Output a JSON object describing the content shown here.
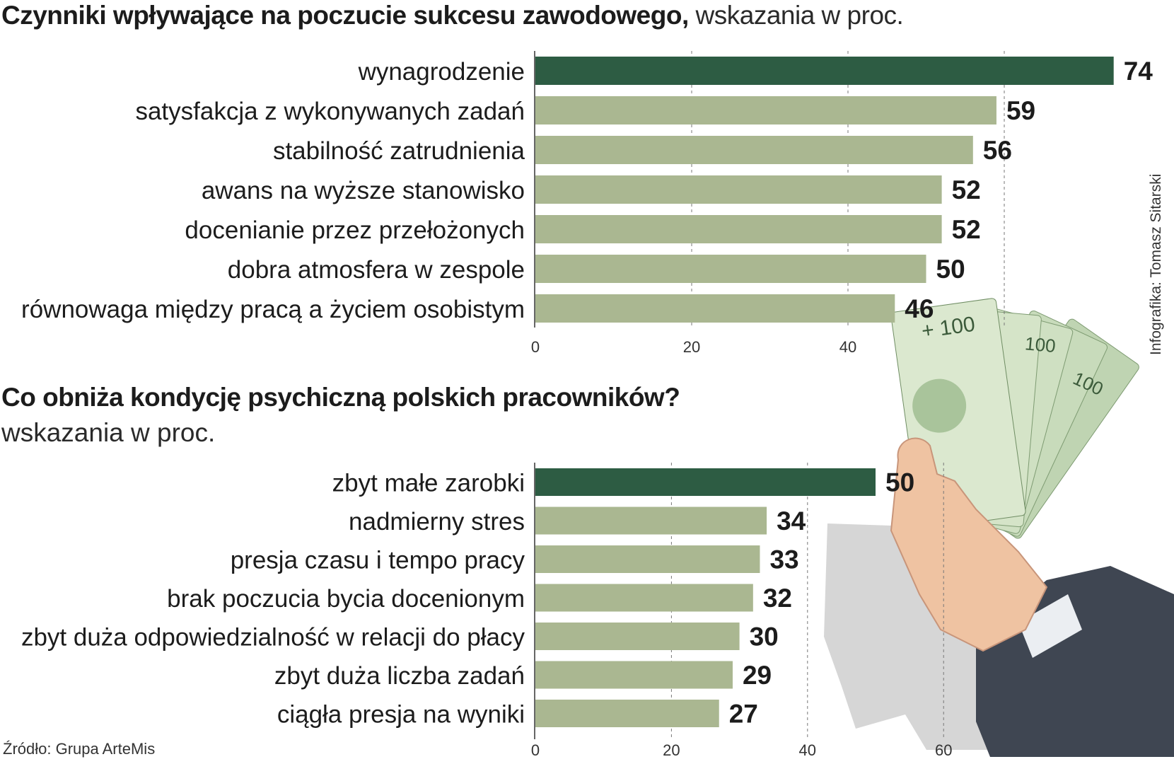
{
  "chart1": {
    "title_bold": "Czynniki wpływające na poczucie sukcesu zawodowego,",
    "title_light": "wskazania w proc."
  },
  "chart2": {
    "title_bold": "Co obniża kondycję psychiczną polskich pracowników?",
    "title_light": "wskazania w proc."
  },
  "credit": "Infografika: Tomasz Sitarski",
  "source": "Źródło: Grupa ArteMis",
  "colors": {
    "highlight": "#2d5c43",
    "bar": "#aab791",
    "text": "#1c1c1c",
    "grid": "#777777"
  },
  "photo_icon": "hand-holding-100-zloty-banknotes",
  "chart_data": [
    {
      "type": "bar",
      "orientation": "horizontal",
      "title": "Czynniki wpływające na poczucie sukcesu zawodowego, wskazania w proc.",
      "categories": [
        "wynagrodzenie",
        "satysfakcja z wykonywanych zadań",
        "stabilność zatrudnienia",
        "awans na wyższe stanowisko",
        "docenianie przez przełożonych",
        "dobra atmosfera w zespole",
        "równowaga między pracą a życiem osobistym"
      ],
      "values": [
        74,
        59,
        56,
        52,
        52,
        50,
        46
      ],
      "highlight_index": 0,
      "xticks": [
        "0",
        "20",
        "40"
      ],
      "gridlines": [
        20,
        40,
        60
      ],
      "xlim": [
        0,
        80
      ],
      "grid": true
    },
    {
      "type": "bar",
      "orientation": "horizontal",
      "title": "Co obniża kondycję psychiczną polskich pracowników? wskazania w proc.",
      "categories": [
        "zbyt małe zarobki",
        "nadmierny stres",
        "presja czasu i tempo pracy",
        "brak poczucia bycia docenionym",
        "zbyt duża odpowiedzialność w relacji do płacy",
        "zbyt duża liczba zadań",
        "ciągła presja na wyniki"
      ],
      "values": [
        50,
        34,
        33,
        32,
        30,
        29,
        27
      ],
      "highlight_index": 0,
      "xticks": [
        "0",
        "20",
        "40",
        "60"
      ],
      "gridlines": [
        20,
        40,
        60
      ],
      "xlim": [
        0,
        80
      ],
      "grid": true
    }
  ]
}
